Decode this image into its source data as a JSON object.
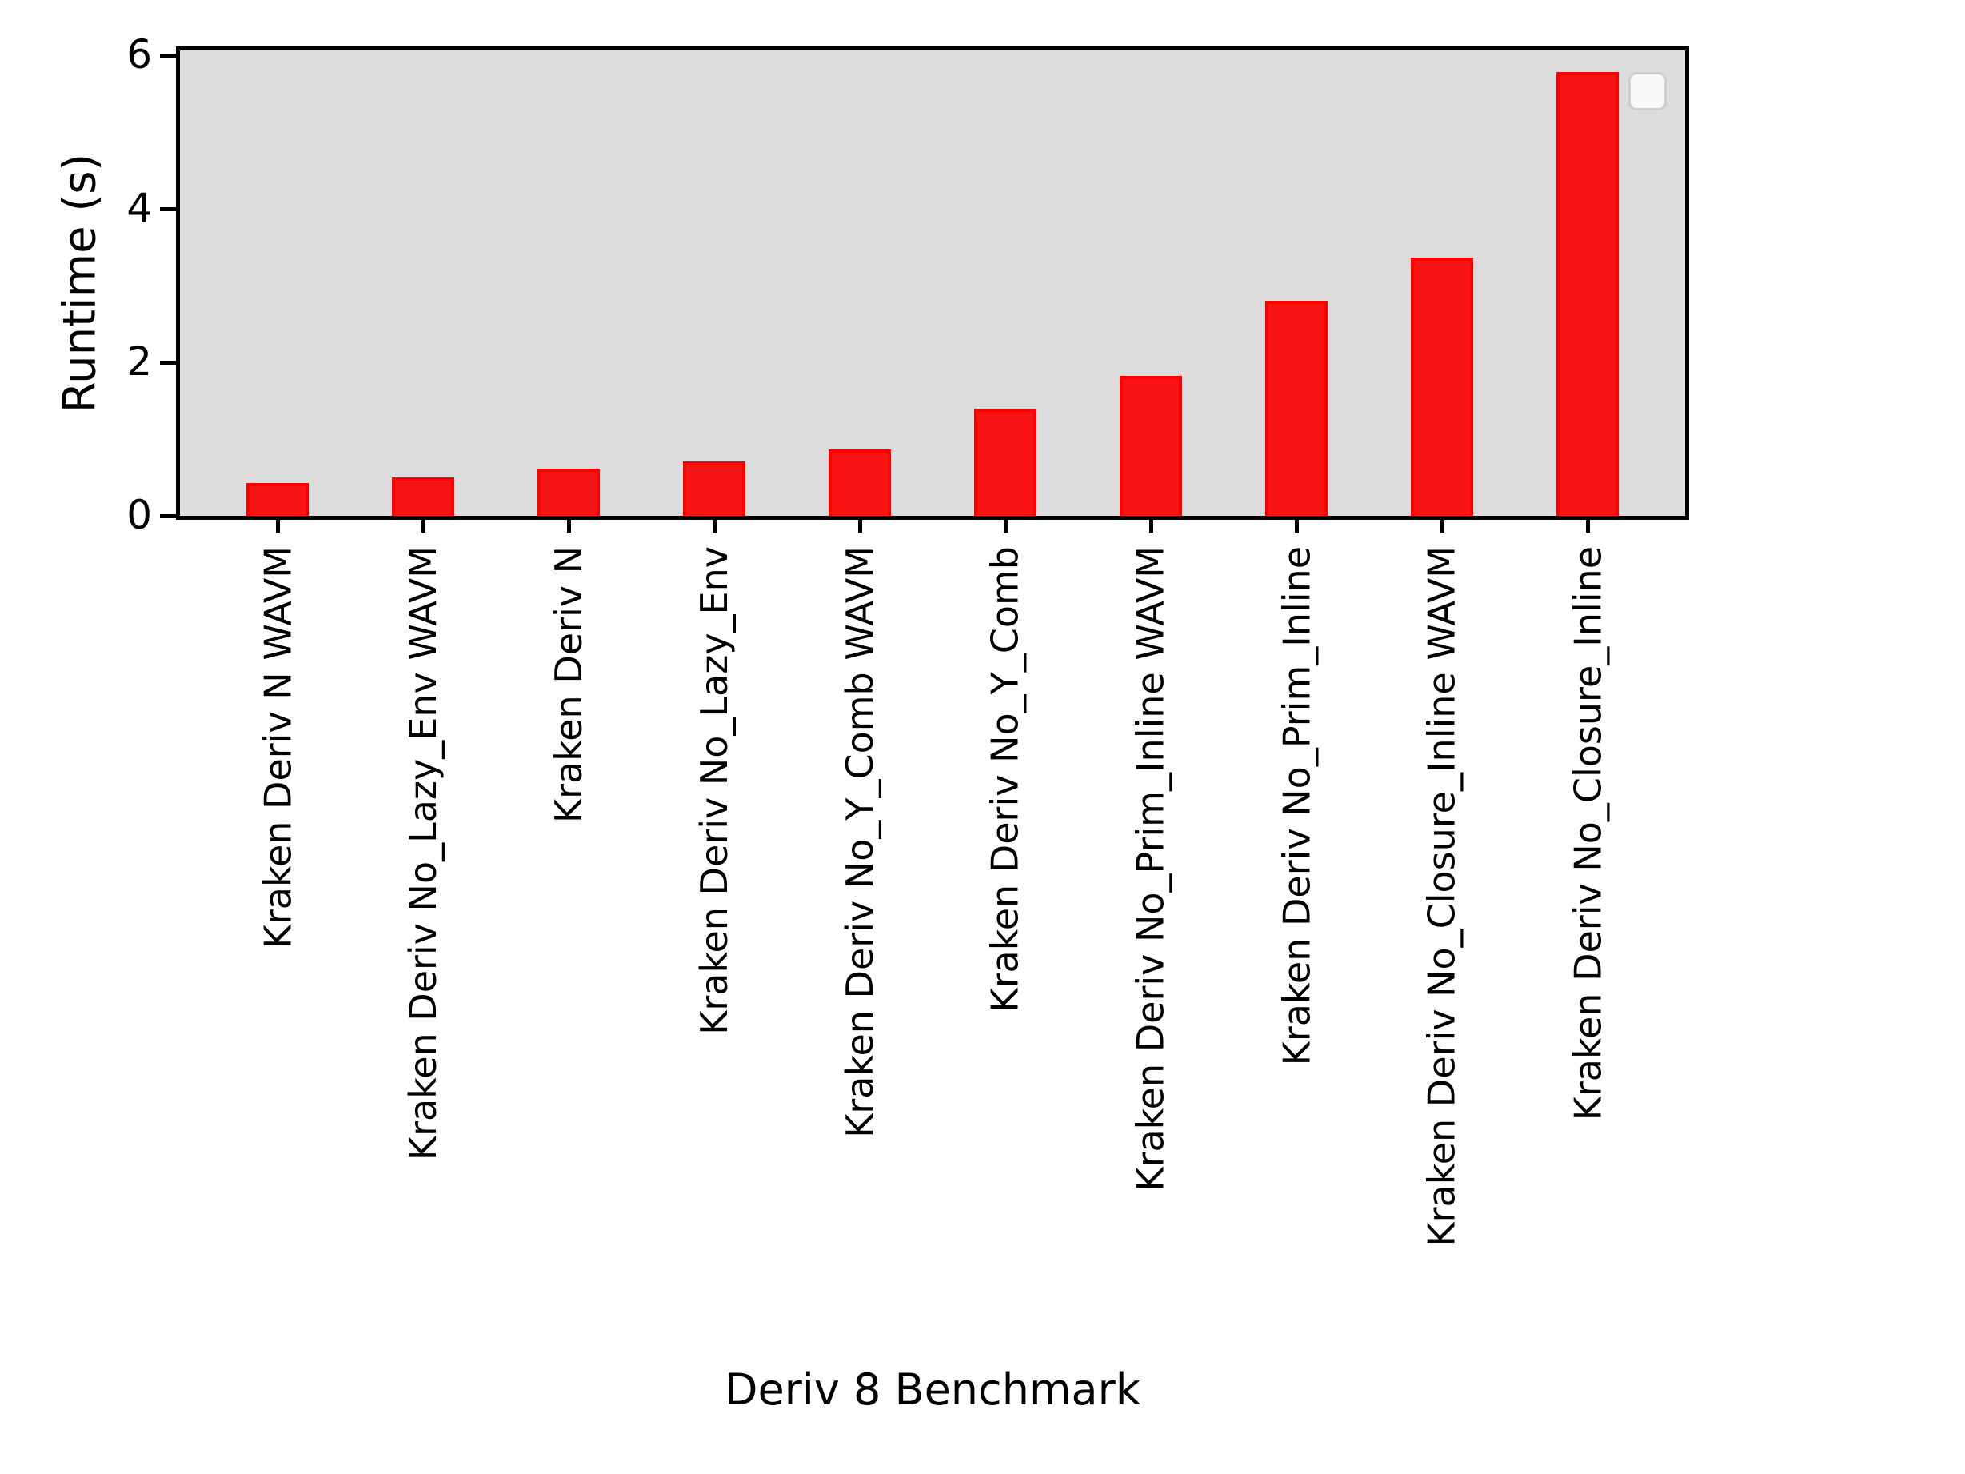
{
  "chart_data": {
    "type": "bar",
    "title": "",
    "xlabel": "Deriv 8 Benchmark",
    "ylabel": "Runtime (s)",
    "categories": [
      "Kraken Deriv N WAVM",
      "Kraken Deriv No_Lazy_Env WAVM",
      "Kraken Deriv N",
      "Kraken Deriv No_Lazy_Env",
      "Kraken Deriv No_Y_Comb WAVM",
      "Kraken Deriv No_Y_Comb",
      "Kraken Deriv No_Prim_Inline WAVM",
      "Kraken Deriv No_Prim_Inline",
      "Kraken Deriv No_Closure_Inline WAVM",
      "Kraken Deriv No_Closure_Inline"
    ],
    "values": [
      0.43,
      0.5,
      0.61,
      0.71,
      0.86,
      1.4,
      1.82,
      2.8,
      3.36,
      5.78
    ],
    "yticks": [
      0,
      2,
      4,
      6
    ],
    "ytick_labels": [
      "0",
      "2",
      "4",
      "6"
    ],
    "ylim": [
      0,
      6.06
    ],
    "grid": false,
    "legend": "empty legend box, top-right inside plot",
    "colors": {
      "bar_fill": "#F81414",
      "bar_edge": "#FF0000",
      "plot_background": "#DCDCDC",
      "figure_background": "#FFFFFF",
      "axis": "#000000"
    }
  }
}
